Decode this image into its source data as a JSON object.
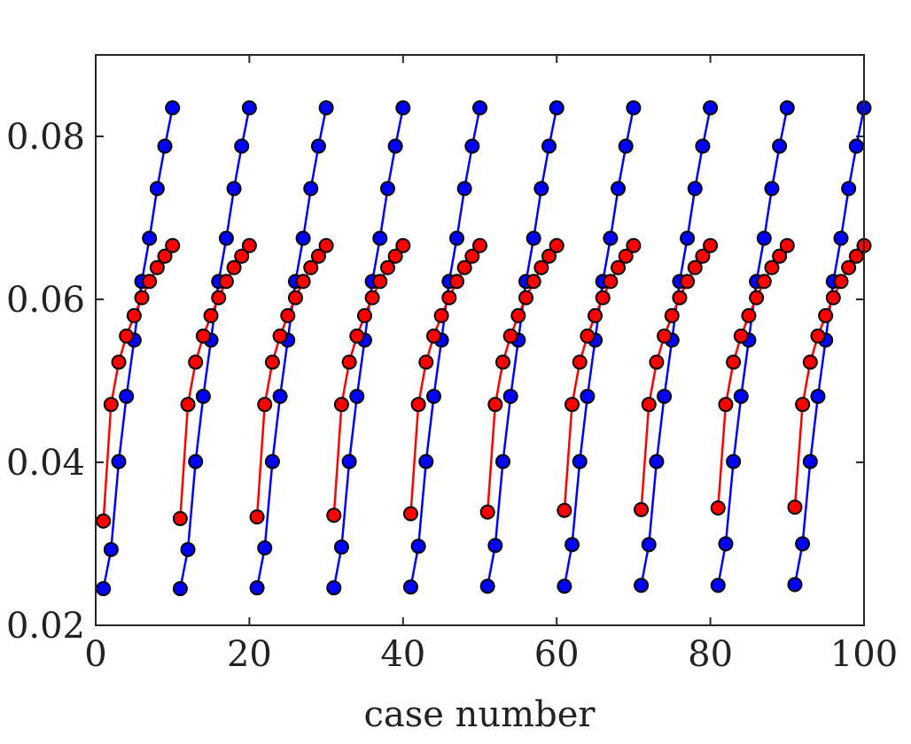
{
  "chart_data": {
    "type": "line",
    "title": "",
    "xlabel": "case number",
    "ylabel": "",
    "xlim": [
      0,
      100
    ],
    "ylim": [
      0.02,
      0.09
    ],
    "xticks": [
      0,
      20,
      40,
      60,
      80,
      100
    ],
    "xtick_labels": [
      "0",
      "20",
      "40",
      "60",
      "80",
      "100"
    ],
    "yticks": [
      0.02,
      0.04,
      0.06,
      0.08
    ],
    "ytick_labels": [
      "0.02",
      "0.04",
      "0.06",
      "0.08"
    ],
    "grid": false,
    "legend": "none",
    "series": [
      {
        "color": "#0000ff",
        "marker_color": "#0000ff",
        "x": [
          1,
          2,
          3,
          4,
          5,
          6,
          7,
          8,
          9,
          10,
          11,
          12,
          13,
          14,
          15,
          16,
          17,
          18,
          19,
          20,
          21,
          22,
          23,
          24,
          25,
          26,
          27,
          28,
          29,
          30,
          31,
          32,
          33,
          34,
          35,
          36,
          37,
          38,
          39,
          40,
          41,
          42,
          43,
          44,
          45,
          46,
          47,
          48,
          49,
          50,
          51,
          52,
          53,
          54,
          55,
          56,
          57,
          58,
          59,
          60,
          61,
          62,
          63,
          64,
          65,
          66,
          67,
          68,
          69,
          70,
          71,
          72,
          73,
          74,
          75,
          76,
          77,
          78,
          79,
          80,
          81,
          82,
          83,
          84,
          85,
          86,
          87,
          88,
          89,
          90,
          91,
          92,
          93,
          94,
          95,
          96,
          97,
          98,
          99,
          100
        ],
        "y": [
          0.0245,
          0.0293,
          0.0401,
          0.0481,
          0.055,
          0.0622,
          0.0675,
          0.0736,
          0.0788,
          0.0835,
          0.0245,
          0.0293,
          0.0401,
          0.0481,
          0.055,
          0.0622,
          0.0675,
          0.0736,
          0.0788,
          0.0835,
          0.0246,
          0.0295,
          0.0401,
          0.0481,
          0.055,
          0.0622,
          0.0675,
          0.0736,
          0.0788,
          0.0835,
          0.0246,
          0.0296,
          0.0401,
          0.0481,
          0.055,
          0.0622,
          0.0675,
          0.0736,
          0.0788,
          0.0835,
          0.0247,
          0.0297,
          0.0401,
          0.0481,
          0.055,
          0.0622,
          0.0675,
          0.0736,
          0.0788,
          0.0835,
          0.0248,
          0.0298,
          0.0401,
          0.0481,
          0.055,
          0.0622,
          0.0675,
          0.0736,
          0.0788,
          0.0835,
          0.0248,
          0.0299,
          0.0401,
          0.0481,
          0.055,
          0.0622,
          0.0675,
          0.0736,
          0.0788,
          0.0835,
          0.0249,
          0.0299,
          0.0401,
          0.0481,
          0.055,
          0.0622,
          0.0675,
          0.0736,
          0.0788,
          0.0835,
          0.0249,
          0.03,
          0.0401,
          0.0481,
          0.055,
          0.0622,
          0.0675,
          0.0736,
          0.0788,
          0.0835,
          0.025,
          0.03,
          0.0401,
          0.0481,
          0.055,
          0.0622,
          0.0675,
          0.0736,
          0.0788,
          0.0835
        ]
      },
      {
        "color": "#ff0000",
        "marker_color": "#ff0000",
        "x": [
          1,
          2,
          3,
          4,
          5,
          6,
          7,
          8,
          9,
          10,
          11,
          12,
          13,
          14,
          15,
          16,
          17,
          18,
          19,
          20,
          21,
          22,
          23,
          24,
          25,
          26,
          27,
          28,
          29,
          30,
          31,
          32,
          33,
          34,
          35,
          36,
          37,
          38,
          39,
          40,
          41,
          42,
          43,
          44,
          45,
          46,
          47,
          48,
          49,
          50,
          51,
          52,
          53,
          54,
          55,
          56,
          57,
          58,
          59,
          60,
          61,
          62,
          63,
          64,
          65,
          66,
          67,
          68,
          69,
          70,
          71,
          72,
          73,
          74,
          75,
          76,
          77,
          78,
          79,
          80,
          81,
          82,
          83,
          84,
          85,
          86,
          87,
          88,
          89,
          90,
          91,
          92,
          93,
          94,
          95,
          96,
          97,
          98,
          99,
          100
        ],
        "y": [
          0.0328,
          0.0471,
          0.0523,
          0.0555,
          0.058,
          0.0602,
          0.0622,
          0.0639,
          0.0653,
          0.0666,
          0.0331,
          0.0471,
          0.0523,
          0.0555,
          0.058,
          0.0602,
          0.0622,
          0.0639,
          0.0653,
          0.0666,
          0.0333,
          0.0471,
          0.0523,
          0.0555,
          0.058,
          0.0602,
          0.0622,
          0.0639,
          0.0653,
          0.0666,
          0.0335,
          0.0471,
          0.0523,
          0.0555,
          0.058,
          0.0602,
          0.0622,
          0.0639,
          0.0653,
          0.0666,
          0.0337,
          0.0471,
          0.0523,
          0.0555,
          0.058,
          0.0602,
          0.0622,
          0.0639,
          0.0653,
          0.0666,
          0.0339,
          0.0471,
          0.0523,
          0.0555,
          0.058,
          0.0602,
          0.0622,
          0.0639,
          0.0653,
          0.0666,
          0.0341,
          0.0471,
          0.0523,
          0.0555,
          0.058,
          0.0602,
          0.0622,
          0.0639,
          0.0653,
          0.0666,
          0.0342,
          0.0471,
          0.0523,
          0.0555,
          0.058,
          0.0602,
          0.0622,
          0.0639,
          0.0653,
          0.0666,
          0.0344,
          0.0471,
          0.0523,
          0.0555,
          0.058,
          0.0602,
          0.0622,
          0.0639,
          0.0653,
          0.0666,
          0.0345,
          0.0471,
          0.0523,
          0.0555,
          0.058,
          0.0602,
          0.0622,
          0.0639,
          0.0653,
          0.0666
        ]
      }
    ]
  }
}
